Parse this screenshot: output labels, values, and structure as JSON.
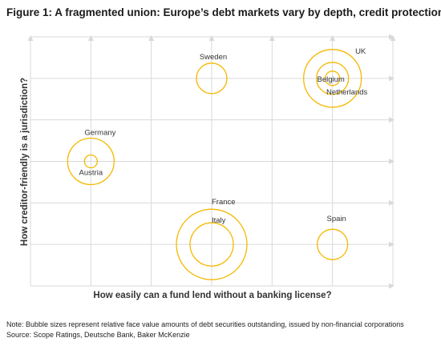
{
  "figure": {
    "title": "Figure 1: A fragmented union: Europe’s debt markets vary by depth, credit protection",
    "note": "Note: Bubble sizes represent relative face value amounts of debt securities outstanding, issued by non-financial corporations",
    "source": "Source: Scope Ratings, Deutsche Bank, Baker McKenzie"
  },
  "chart_data": {
    "type": "scatter",
    "subtype": "bubble",
    "title": "Figure 1: A fragmented union: Europe’s debt markets vary by depth, credit protection",
    "xlabel": "How easily can a fund lend without a banking license?",
    "ylabel": "How creditor-friendly is a jurisdiction?",
    "xlim": [
      0,
      6
    ],
    "ylim": [
      0,
      6
    ],
    "grid": true,
    "tick_labels_shown": false,
    "bubble_color": "#f5b800",
    "bubble_fill": "none",
    "points": [
      {
        "name": "UK",
        "x": 5,
        "y": 5,
        "size": 36
      },
      {
        "name": "Belgium",
        "x": 5,
        "y": 5,
        "size": 9
      },
      {
        "name": "Netherlands",
        "x": 5,
        "y": 5,
        "size": 20
      },
      {
        "name": "Sweden",
        "x": 3,
        "y": 5,
        "size": 19
      },
      {
        "name": "Germany",
        "x": 1,
        "y": 3,
        "size": 29
      },
      {
        "name": "Austria",
        "x": 1,
        "y": 3,
        "size": 8
      },
      {
        "name": "France",
        "x": 3,
        "y": 1,
        "size": 44
      },
      {
        "name": "Italy",
        "x": 3,
        "y": 1,
        "size": 27
      },
      {
        "name": "Spain",
        "x": 5,
        "y": 1,
        "size": 19
      }
    ]
  }
}
